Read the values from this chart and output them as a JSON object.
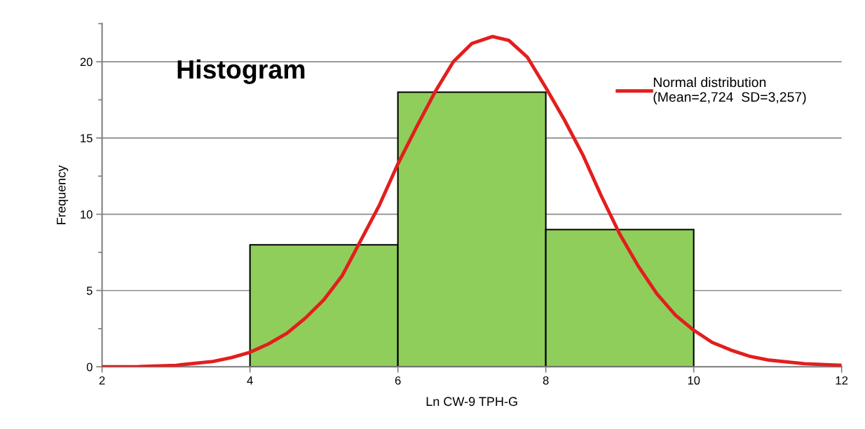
{
  "chart_data": {
    "type": "histogram",
    "title": "Histogram",
    "xlabel": "Ln CW-9 TPH-G",
    "ylabel": "Frequency",
    "bins": [
      4,
      6,
      8,
      10
    ],
    "values": [
      8,
      18,
      9
    ],
    "color": "#8fce5a",
    "series": [
      {
        "type": "line",
        "name": "Normal distribution\n(Mean=2,724  SD=3,257)",
        "color": "#e31e1e",
        "x": [
          2,
          2.5,
          3,
          3.5,
          3.75,
          4,
          4.25,
          4.5,
          4.75,
          5,
          5.25,
          5.5,
          5.75,
          6,
          6.25,
          6.5,
          6.75,
          7,
          7.28,
          7.5,
          7.75,
          8,
          8.25,
          8.5,
          8.75,
          9,
          9.25,
          9.5,
          9.75,
          10,
          10.25,
          10.5,
          10.75,
          11,
          11.5,
          12
        ],
        "values": [
          0,
          0.02,
          0.1,
          0.35,
          0.6,
          0.95,
          1.5,
          2.2,
          3.2,
          4.4,
          6.0,
          8.3,
          10.6,
          13.3,
          15.7,
          18.0,
          20.0,
          21.2,
          21.65,
          21.4,
          20.3,
          18.3,
          16.2,
          13.9,
          11.2,
          8.7,
          6.6,
          4.8,
          3.4,
          2.4,
          1.6,
          1.1,
          0.7,
          0.45,
          0.2,
          0.1
        ]
      }
    ],
    "xlim": [
      2,
      12
    ],
    "xticks": [
      2,
      4,
      6,
      8,
      10,
      12
    ],
    "ylim": [
      0,
      22.5
    ],
    "yticks": [
      0,
      5,
      10,
      15,
      20
    ],
    "grid": "y",
    "legend": "top right"
  }
}
